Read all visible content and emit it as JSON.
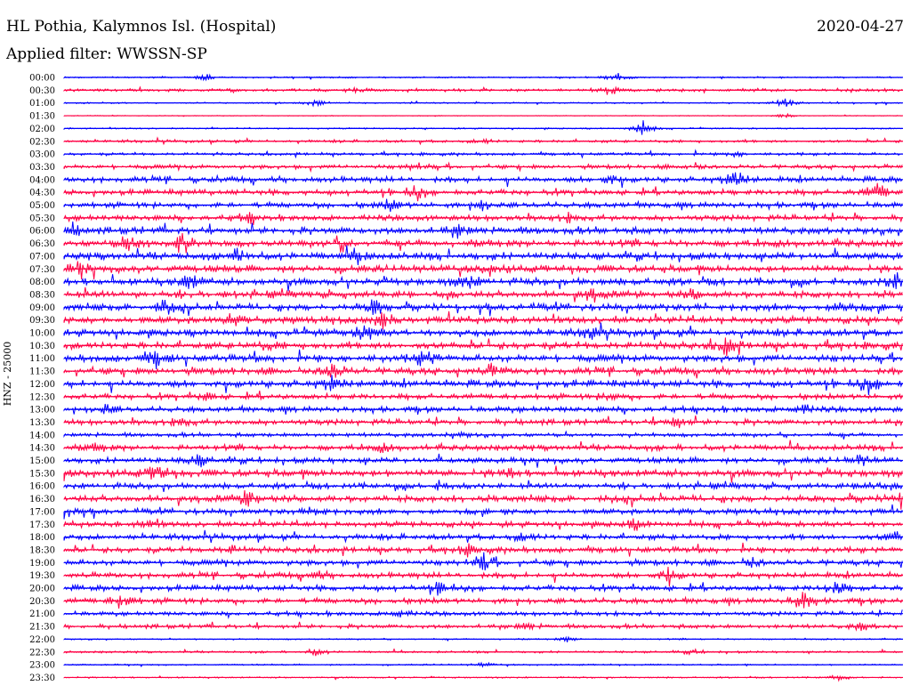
{
  "header": {
    "station": "HL Pothia, Kalymnos Isl. (Hospital)",
    "date": "2020-04-27",
    "filter": "Applied filter: WWSSN-SP"
  },
  "chart_data": {
    "type": "line",
    "title": "HL Pothia, Kalymnos Isl. (Hospital)",
    "ylabel": "HNZ - 25000",
    "grid": false,
    "colors": {
      "even": "#0000ff",
      "odd": "#ff0044"
    },
    "series": [
      {
        "name": "00:00",
        "amp": 1,
        "events": [
          [
            0.17,
            4
          ],
          [
            0.66,
            5
          ]
        ]
      },
      {
        "name": "00:30",
        "amp": 2,
        "events": [
          [
            0.65,
            5
          ],
          [
            0.35,
            3
          ]
        ]
      },
      {
        "name": "01:00",
        "amp": 1,
        "events": [
          [
            0.3,
            4
          ],
          [
            0.86,
            6
          ]
        ]
      },
      {
        "name": "01:30",
        "amp": 0.5,
        "events": [
          [
            0.86,
            3
          ]
        ]
      },
      {
        "name": "02:00",
        "amp": 1,
        "events": [
          [
            0.69,
            9
          ]
        ]
      },
      {
        "name": "02:30",
        "amp": 2,
        "events": [
          [
            0.5,
            3
          ]
        ]
      },
      {
        "name": "03:00",
        "amp": 2,
        "events": [
          [
            0.8,
            3
          ]
        ]
      },
      {
        "name": "03:30",
        "amp": 3,
        "events": [
          [
            0.42,
            4
          ],
          [
            0.75,
            4
          ]
        ]
      },
      {
        "name": "04:00",
        "amp": 4,
        "events": [
          [
            0.8,
            13
          ],
          [
            0.65,
            6
          ]
        ]
      },
      {
        "name": "04:30",
        "amp": 4,
        "events": [
          [
            0.42,
            8
          ],
          [
            0.97,
            11
          ]
        ]
      },
      {
        "name": "05:00",
        "amp": 4,
        "events": [
          [
            0.39,
            7
          ],
          [
            0.5,
            5
          ]
        ]
      },
      {
        "name": "05:30",
        "amp": 4,
        "events": [
          [
            0.22,
            5
          ],
          [
            0.6,
            4
          ]
        ]
      },
      {
        "name": "06:00",
        "amp": 5,
        "events": [
          [
            0.01,
            7
          ],
          [
            0.47,
            7
          ]
        ]
      },
      {
        "name": "06:30",
        "amp": 5,
        "events": [
          [
            0.08,
            11
          ],
          [
            0.14,
            12
          ],
          [
            0.33,
            7
          ]
        ]
      },
      {
        "name": "07:00",
        "amp": 5,
        "events": [
          [
            0.21,
            9
          ],
          [
            0.35,
            8
          ]
        ]
      },
      {
        "name": "07:30",
        "amp": 5,
        "events": [
          [
            0.02,
            9
          ],
          [
            0.51,
            5
          ]
        ]
      },
      {
        "name": "08:00",
        "amp": 5,
        "events": [
          [
            0.15,
            9
          ],
          [
            0.48,
            8
          ],
          [
            0.99,
            12
          ]
        ]
      },
      {
        "name": "08:30",
        "amp": 5,
        "events": [
          [
            0.63,
            7
          ],
          [
            0.75,
            5
          ]
        ]
      },
      {
        "name": "09:00",
        "amp": 5,
        "events": [
          [
            0.37,
            9
          ],
          [
            0.12,
            7
          ],
          [
            0.93,
            7
          ]
        ]
      },
      {
        "name": "09:30",
        "amp": 5,
        "events": [
          [
            0.38,
            8
          ],
          [
            0.2,
            5
          ]
        ]
      },
      {
        "name": "10:00",
        "amp": 5,
        "events": [
          [
            0.36,
            10
          ],
          [
            0.63,
            6
          ]
        ]
      },
      {
        "name": "10:30",
        "amp": 5,
        "events": [
          [
            0.79,
            11
          ],
          [
            0.24,
            4
          ]
        ]
      },
      {
        "name": "11:00",
        "amp": 5,
        "events": [
          [
            0.11,
            9
          ],
          [
            0.43,
            9
          ]
        ]
      },
      {
        "name": "11:30",
        "amp": 5,
        "events": [
          [
            0.32,
            10
          ],
          [
            0.51,
            6
          ]
        ]
      },
      {
        "name": "12:00",
        "amp": 5,
        "events": [
          [
            0.32,
            10
          ],
          [
            0.96,
            10
          ]
        ]
      },
      {
        "name": "12:30",
        "amp": 4,
        "events": [
          [
            0.17,
            4
          ],
          [
            0.65,
            4
          ]
        ]
      },
      {
        "name": "13:00",
        "amp": 4,
        "events": [
          [
            0.05,
            5
          ],
          [
            0.88,
            5
          ]
        ]
      },
      {
        "name": "13:30",
        "amp": 4,
        "events": [
          [
            0.73,
            7
          ],
          [
            0.14,
            4
          ]
        ]
      },
      {
        "name": "14:00",
        "amp": 3,
        "events": [
          [
            0.47,
            4
          ]
        ]
      },
      {
        "name": "14:30",
        "amp": 4,
        "events": [
          [
            0.04,
            4
          ],
          [
            0.38,
            4
          ]
        ]
      },
      {
        "name": "15:00",
        "amp": 4,
        "events": [
          [
            0.16,
            7
          ],
          [
            0.95,
            6
          ]
        ]
      },
      {
        "name": "15:30",
        "amp": 5,
        "events": [
          [
            0.11,
            9
          ],
          [
            0.53,
            5
          ]
        ]
      },
      {
        "name": "16:00",
        "amp": 4,
        "events": [
          [
            0.45,
            5
          ],
          [
            0.96,
            6
          ]
        ]
      },
      {
        "name": "16:30",
        "amp": 5,
        "events": [
          [
            0.22,
            9
          ],
          [
            1.0,
            8
          ]
        ]
      },
      {
        "name": "17:00",
        "amp": 4,
        "events": [
          [
            0.0,
            10
          ],
          [
            0.3,
            5
          ]
        ]
      },
      {
        "name": "17:30",
        "amp": 4,
        "events": [
          [
            0.68,
            6
          ],
          [
            0.1,
            4
          ]
        ]
      },
      {
        "name": "18:00",
        "amp": 4,
        "events": [
          [
            0.55,
            5
          ],
          [
            0.99,
            6
          ]
        ]
      },
      {
        "name": "18:30",
        "amp": 4,
        "events": [
          [
            0.48,
            6
          ],
          [
            0.2,
            4
          ]
        ]
      },
      {
        "name": "19:00",
        "amp": 4,
        "events": [
          [
            0.5,
            11
          ],
          [
            0.82,
            5
          ]
        ]
      },
      {
        "name": "19:30",
        "amp": 4,
        "events": [
          [
            0.72,
            8
          ],
          [
            0.3,
            4
          ]
        ]
      },
      {
        "name": "20:00",
        "amp": 4,
        "events": [
          [
            0.45,
            8
          ],
          [
            0.92,
            8
          ]
        ]
      },
      {
        "name": "20:30",
        "amp": 4,
        "events": [
          [
            0.07,
            11
          ],
          [
            0.88,
            11
          ]
        ]
      },
      {
        "name": "21:00",
        "amp": 3,
        "events": [
          [
            0.4,
            4
          ]
        ]
      },
      {
        "name": "21:30",
        "amp": 3,
        "events": [
          [
            0.55,
            4
          ],
          [
            0.95,
            4
          ]
        ]
      },
      {
        "name": "22:00",
        "amp": 1,
        "events": [
          [
            0.6,
            3
          ]
        ]
      },
      {
        "name": "22:30",
        "amp": 1.5,
        "events": [
          [
            0.3,
            4
          ],
          [
            0.75,
            3
          ]
        ]
      },
      {
        "name": "23:00",
        "amp": 1,
        "events": [
          [
            0.5,
            3
          ]
        ]
      },
      {
        "name": "23:30",
        "amp": 1,
        "events": [
          [
            0.92,
            3
          ]
        ]
      }
    ]
  }
}
